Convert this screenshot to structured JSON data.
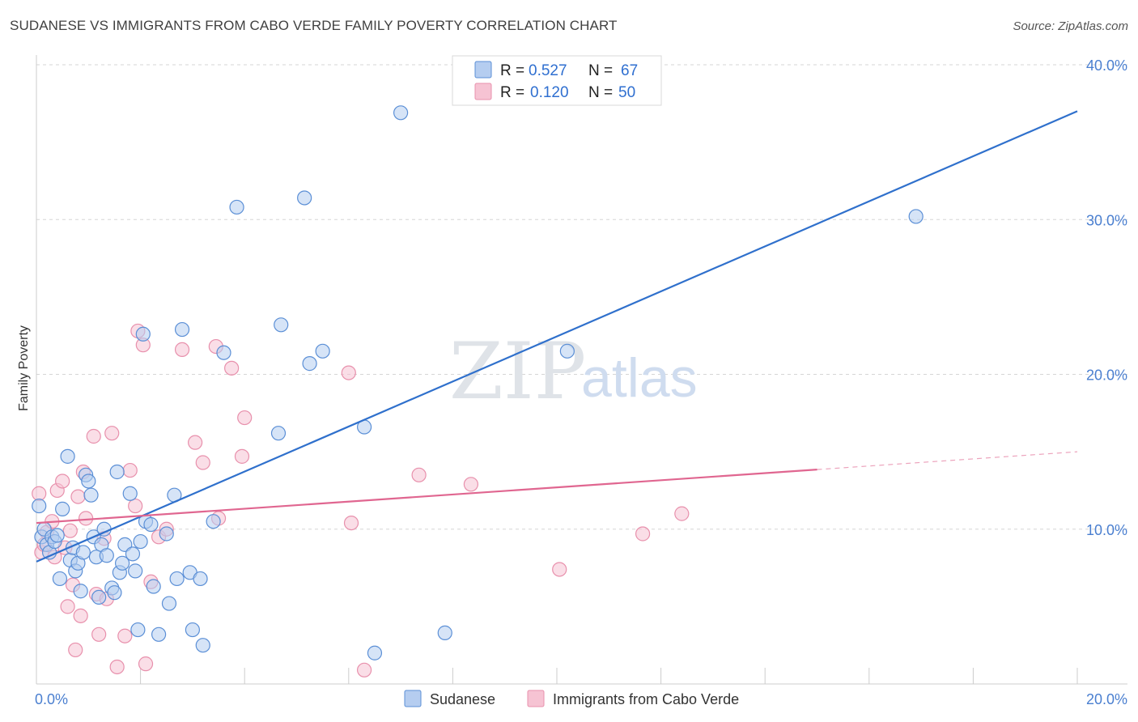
{
  "title": "SUDANESE VS IMMIGRANTS FROM CABO VERDE FAMILY POVERTY CORRELATION CHART",
  "source": "Source: ZipAtlas.com",
  "watermark": {
    "zip": "ZIP",
    "atlas": "atlas"
  },
  "legend": {
    "r_label": "R =",
    "n_label": "N =",
    "items": [
      {
        "r": "0.527",
        "n": "67"
      },
      {
        "r": "0.120",
        "n": "50"
      }
    ]
  },
  "colors": {
    "blue_fill": "#b5cdf0",
    "blue_stroke": "#5b8fd6",
    "blue_line": "#2f70cc",
    "pink_fill": "#f6c3d3",
    "pink_stroke": "#e890ac",
    "pink_line": "#e06690"
  },
  "chart_data": {
    "type": "scatter",
    "title": "SUDANESE VS IMMIGRANTS FROM CABO VERDE FAMILY POVERTY CORRELATION CHART",
    "xlabel": "",
    "ylabel": "Family Poverty",
    "xlim": [
      0,
      20
    ],
    "ylim": [
      0,
      40
    ],
    "x_tick_labels": [
      "0.0%",
      "20.0%"
    ],
    "y_ticks": [
      10,
      20,
      30,
      40
    ],
    "y_tick_labels": [
      "10.0%",
      "20.0%",
      "30.0%",
      "40.0%"
    ],
    "series": [
      {
        "name": "Sudanese",
        "r": 0.527,
        "n": 67,
        "trend": {
          "x": [
            0,
            20
          ],
          "y": [
            7.9,
            37.0
          ],
          "dashed_from": null
        },
        "points": [
          [
            0.05,
            11.5
          ],
          [
            0.1,
            9.5
          ],
          [
            0.15,
            10.0
          ],
          [
            0.2,
            9.0
          ],
          [
            0.25,
            8.5
          ],
          [
            0.3,
            9.5
          ],
          [
            0.35,
            9.2
          ],
          [
            0.4,
            9.6
          ],
          [
            0.45,
            6.8
          ],
          [
            0.5,
            11.3
          ],
          [
            0.6,
            14.7
          ],
          [
            0.65,
            8.0
          ],
          [
            0.7,
            8.8
          ],
          [
            0.75,
            7.3
          ],
          [
            0.8,
            7.8
          ],
          [
            0.85,
            6.0
          ],
          [
            0.9,
            8.5
          ],
          [
            0.95,
            13.5
          ],
          [
            1.0,
            13.1
          ],
          [
            1.05,
            12.2
          ],
          [
            1.1,
            9.5
          ],
          [
            1.15,
            8.2
          ],
          [
            1.2,
            5.6
          ],
          [
            1.25,
            9.0
          ],
          [
            1.3,
            10.0
          ],
          [
            1.35,
            8.3
          ],
          [
            1.45,
            6.2
          ],
          [
            1.5,
            5.9
          ],
          [
            1.55,
            13.7
          ],
          [
            1.6,
            7.2
          ],
          [
            1.65,
            7.8
          ],
          [
            1.7,
            9.0
          ],
          [
            1.8,
            12.3
          ],
          [
            1.85,
            8.4
          ],
          [
            1.9,
            7.3
          ],
          [
            1.95,
            3.5
          ],
          [
            2.0,
            9.2
          ],
          [
            2.05,
            22.6
          ],
          [
            2.1,
            10.5
          ],
          [
            2.2,
            10.3
          ],
          [
            2.25,
            6.3
          ],
          [
            2.35,
            3.2
          ],
          [
            2.5,
            9.7
          ],
          [
            2.55,
            5.2
          ],
          [
            2.65,
            12.2
          ],
          [
            2.7,
            6.8
          ],
          [
            2.8,
            22.9
          ],
          [
            2.95,
            7.2
          ],
          [
            3.0,
            3.5
          ],
          [
            3.15,
            6.8
          ],
          [
            3.2,
            2.5
          ],
          [
            3.4,
            10.5
          ],
          [
            3.6,
            21.4
          ],
          [
            3.85,
            30.8
          ],
          [
            4.65,
            16.2
          ],
          [
            4.7,
            23.2
          ],
          [
            5.15,
            31.4
          ],
          [
            5.25,
            20.7
          ],
          [
            5.5,
            21.5
          ],
          [
            6.3,
            16.6
          ],
          [
            6.5,
            2.0
          ],
          [
            7.0,
            36.9
          ],
          [
            7.85,
            3.3
          ],
          [
            10.2,
            21.5
          ],
          [
            16.9,
            30.2
          ]
        ]
      },
      {
        "name": "Immigrants from Cabo Verde",
        "r": 0.12,
        "n": 50,
        "trend": {
          "x": [
            0,
            20
          ],
          "y": [
            10.4,
            15.0
          ],
          "dashed_from": 15
        },
        "points": [
          [
            0.05,
            12.3
          ],
          [
            0.1,
            8.5
          ],
          [
            0.15,
            9.0
          ],
          [
            0.2,
            9.8
          ],
          [
            0.3,
            10.5
          ],
          [
            0.35,
            8.2
          ],
          [
            0.4,
            12.5
          ],
          [
            0.5,
            13.1
          ],
          [
            0.55,
            8.8
          ],
          [
            0.6,
            5.0
          ],
          [
            0.65,
            9.9
          ],
          [
            0.7,
            6.4
          ],
          [
            0.75,
            2.2
          ],
          [
            0.8,
            12.1
          ],
          [
            0.85,
            4.4
          ],
          [
            0.9,
            13.7
          ],
          [
            0.95,
            10.7
          ],
          [
            1.1,
            16.0
          ],
          [
            1.15,
            5.8
          ],
          [
            1.2,
            3.2
          ],
          [
            1.3,
            9.4
          ],
          [
            1.35,
            5.5
          ],
          [
            1.45,
            16.2
          ],
          [
            1.55,
            1.1
          ],
          [
            1.7,
            3.1
          ],
          [
            1.8,
            13.8
          ],
          [
            1.9,
            11.5
          ],
          [
            1.95,
            22.8
          ],
          [
            2.05,
            21.9
          ],
          [
            2.1,
            1.3
          ],
          [
            2.2,
            6.6
          ],
          [
            2.35,
            9.5
          ],
          [
            2.5,
            10.0
          ],
          [
            2.8,
            21.6
          ],
          [
            3.05,
            15.6
          ],
          [
            3.2,
            14.3
          ],
          [
            3.45,
            21.8
          ],
          [
            3.5,
            10.7
          ],
          [
            3.75,
            20.4
          ],
          [
            3.95,
            14.7
          ],
          [
            4.0,
            17.2
          ],
          [
            6.0,
            20.1
          ],
          [
            6.05,
            10.4
          ],
          [
            6.3,
            0.9
          ],
          [
            7.35,
            13.5
          ],
          [
            8.35,
            12.9
          ],
          [
            10.05,
            7.4
          ],
          [
            11.65,
            9.7
          ],
          [
            12.4,
            11.0
          ]
        ]
      }
    ]
  }
}
